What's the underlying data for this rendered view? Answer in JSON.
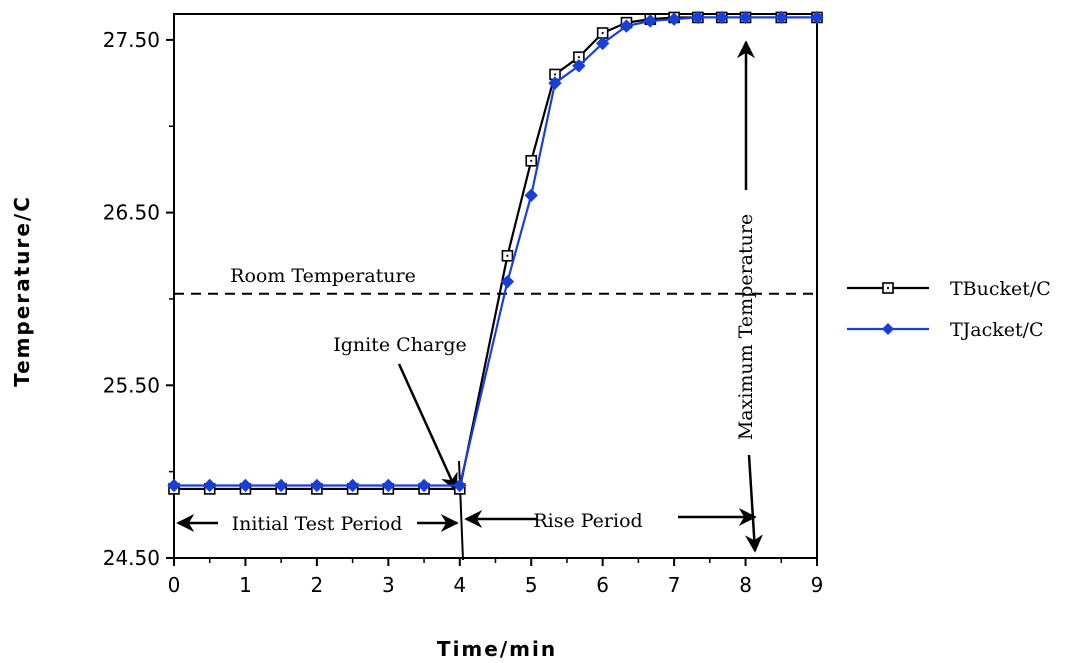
{
  "chart_data": {
    "type": "line",
    "xlabel": "Time/min",
    "ylabel": "Temperature/C",
    "xlim": [
      0,
      9
    ],
    "ylim": [
      24.5,
      27.65
    ],
    "x_ticks": [
      "0",
      "1",
      "2",
      "3",
      "4",
      "5",
      "6",
      "7",
      "8",
      "9"
    ],
    "y_ticks": [
      "24.50",
      "25.50",
      "26.50",
      "27.50"
    ],
    "grid": false,
    "legend_position": "right",
    "series": [
      {
        "name": "TBucket/C",
        "color": "#000000",
        "marker": "open-square",
        "x": [
          0,
          0.5,
          1,
          1.5,
          2,
          2.5,
          3,
          3.5,
          4,
          4.667,
          5,
          5.333,
          5.667,
          6,
          6.333,
          6.667,
          7,
          7.333,
          7.667,
          8,
          8.5,
          9
        ],
        "y": [
          24.9,
          24.9,
          24.9,
          24.9,
          24.9,
          24.9,
          24.9,
          24.9,
          24.9,
          26.25,
          26.8,
          27.3,
          27.4,
          27.54,
          27.6,
          27.62,
          27.63,
          27.63,
          27.63,
          27.63,
          27.63,
          27.63
        ]
      },
      {
        "name": "TJacket/C",
        "color": "#1a3fd6",
        "marker": "filled-diamond",
        "x": [
          0,
          0.5,
          1,
          1.5,
          2,
          2.5,
          3,
          3.5,
          4,
          4.667,
          5,
          5.333,
          5.667,
          6,
          6.333,
          6.667,
          7,
          7.333,
          7.667,
          8,
          8.5,
          9
        ],
        "y": [
          24.92,
          24.92,
          24.92,
          24.92,
          24.92,
          24.92,
          24.92,
          24.92,
          24.92,
          26.1,
          26.6,
          27.25,
          27.35,
          27.48,
          27.58,
          27.61,
          27.62,
          27.63,
          27.63,
          27.63,
          27.63,
          27.63
        ]
      }
    ],
    "reference_line": {
      "label": "Room Temperature",
      "y": 26.03
    },
    "annotations": {
      "ignite": "Ignite Charge",
      "initial": "Initial Test Period",
      "rise": "Rise Period",
      "max": "Maximum Temperature"
    }
  }
}
